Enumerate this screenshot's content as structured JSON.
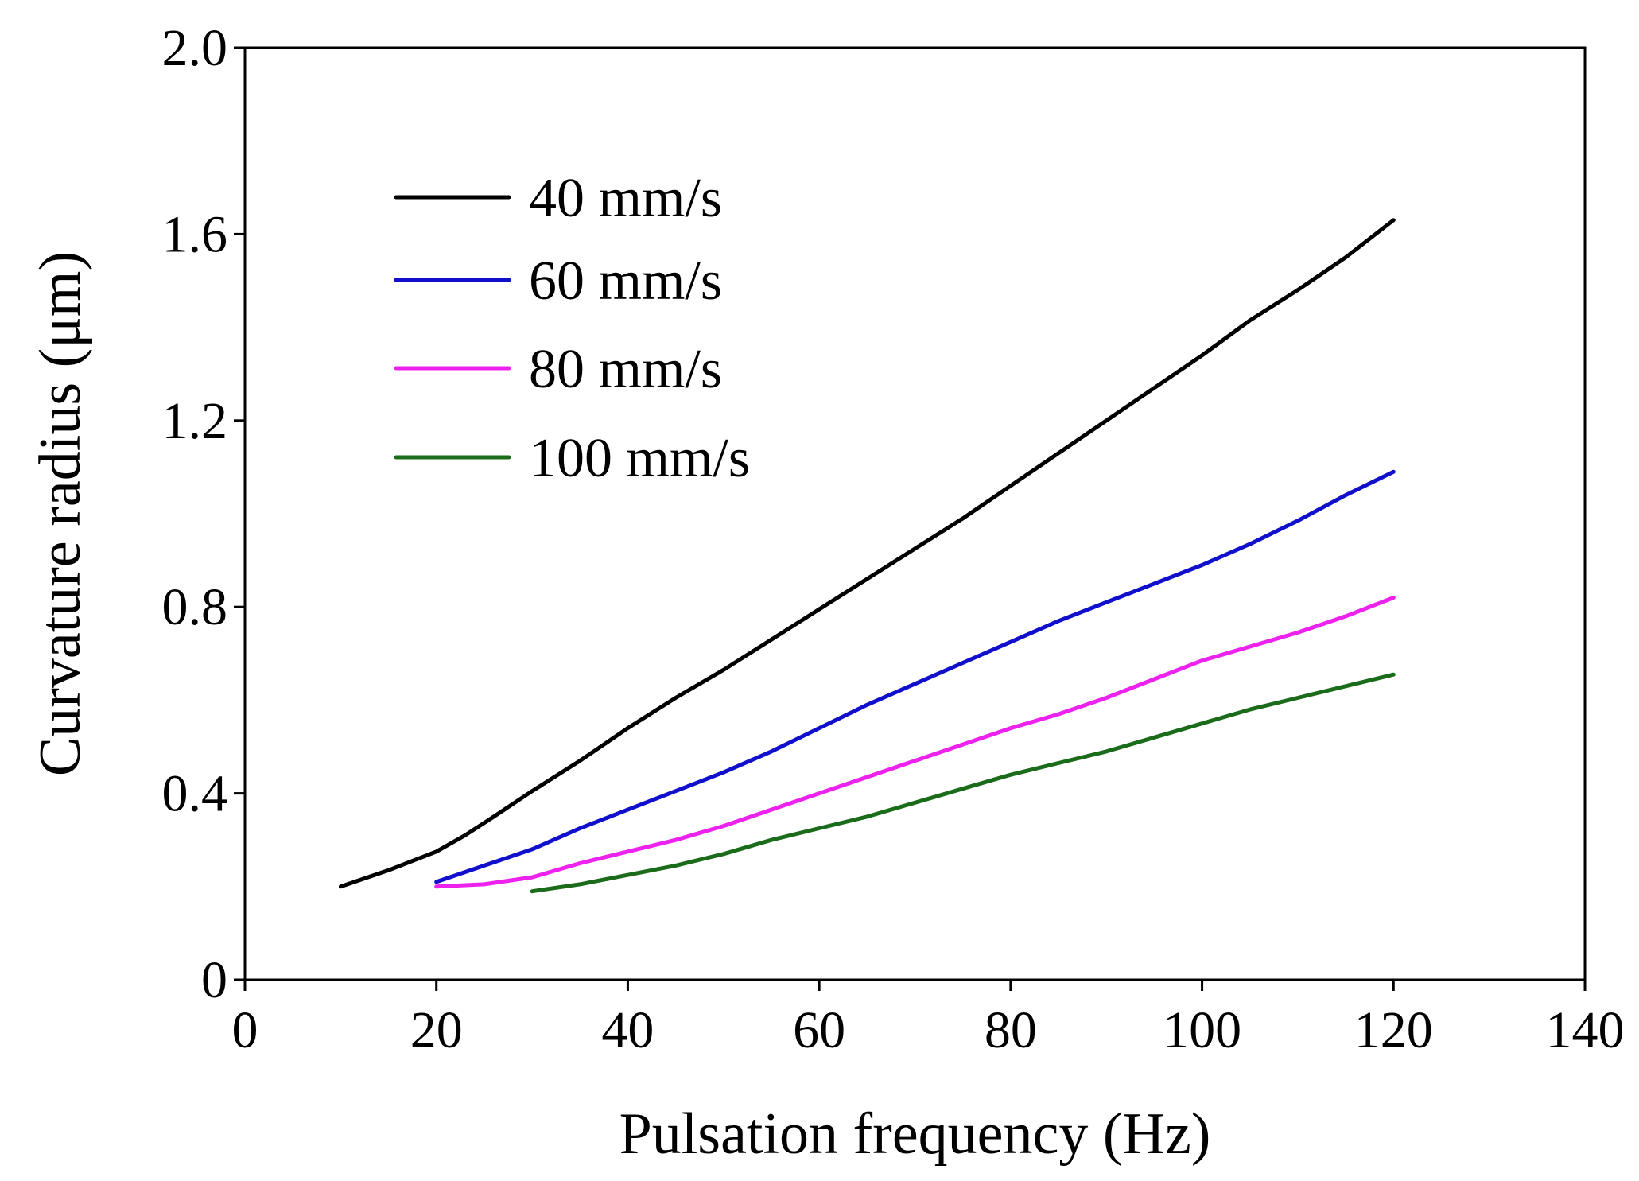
{
  "chart_data": {
    "type": "line",
    "title": "",
    "xlabel": "Pulsation frequency (Hz)",
    "ylabel": "Curvature radius (μm)",
    "xlim": [
      0,
      140
    ],
    "ylim": [
      0,
      2.0
    ],
    "x_ticks": [
      "0",
      "20",
      "40",
      "60",
      "80",
      "100",
      "120",
      "140"
    ],
    "y_ticks": [
      "0",
      "0.4",
      "0.8",
      "1.2",
      "1.6",
      "2.0"
    ],
    "grid": false,
    "legend_position": "top-left",
    "series": [
      {
        "name": "40 mm/s",
        "color": "#000000",
        "x": [
          10,
          15,
          20,
          23,
          26,
          30,
          35,
          40,
          45,
          50,
          55,
          60,
          65,
          70,
          75,
          80,
          85,
          90,
          95,
          100,
          105,
          110,
          115,
          120
        ],
        "y": [
          0.2,
          0.235,
          0.275,
          0.31,
          0.35,
          0.405,
          0.47,
          0.54,
          0.605,
          0.665,
          0.73,
          0.795,
          0.86,
          0.925,
          0.99,
          1.06,
          1.13,
          1.2,
          1.27,
          1.34,
          1.415,
          1.48,
          1.55,
          1.63
        ]
      },
      {
        "name": "60 mm/s",
        "color": "#1010cc",
        "x": [
          20,
          25,
          30,
          35,
          40,
          45,
          50,
          55,
          60,
          65,
          70,
          75,
          80,
          85,
          90,
          95,
          100,
          105,
          110,
          115,
          120
        ],
        "y": [
          0.21,
          0.245,
          0.28,
          0.325,
          0.365,
          0.405,
          0.445,
          0.49,
          0.54,
          0.59,
          0.635,
          0.68,
          0.725,
          0.77,
          0.81,
          0.85,
          0.89,
          0.935,
          0.985,
          1.04,
          1.09
        ]
      },
      {
        "name": "80 mm/s",
        "color": "#ee22ee",
        "x": [
          20,
          25,
          30,
          35,
          40,
          45,
          50,
          55,
          60,
          65,
          70,
          75,
          80,
          85,
          90,
          95,
          100,
          105,
          110,
          115,
          120
        ],
        "y": [
          0.2,
          0.205,
          0.22,
          0.25,
          0.275,
          0.3,
          0.33,
          0.365,
          0.4,
          0.435,
          0.47,
          0.505,
          0.54,
          0.57,
          0.605,
          0.645,
          0.685,
          0.715,
          0.745,
          0.78,
          0.82
        ]
      },
      {
        "name": "100 mm/s",
        "color": "#1a6b1a",
        "x": [
          30,
          35,
          40,
          45,
          50,
          55,
          60,
          65,
          70,
          75,
          80,
          85,
          90,
          95,
          100,
          105,
          110,
          115,
          120
        ],
        "y": [
          0.19,
          0.205,
          0.225,
          0.245,
          0.27,
          0.3,
          0.325,
          0.35,
          0.38,
          0.41,
          0.44,
          0.465,
          0.49,
          0.52,
          0.55,
          0.58,
          0.605,
          0.63,
          0.655
        ]
      }
    ]
  }
}
